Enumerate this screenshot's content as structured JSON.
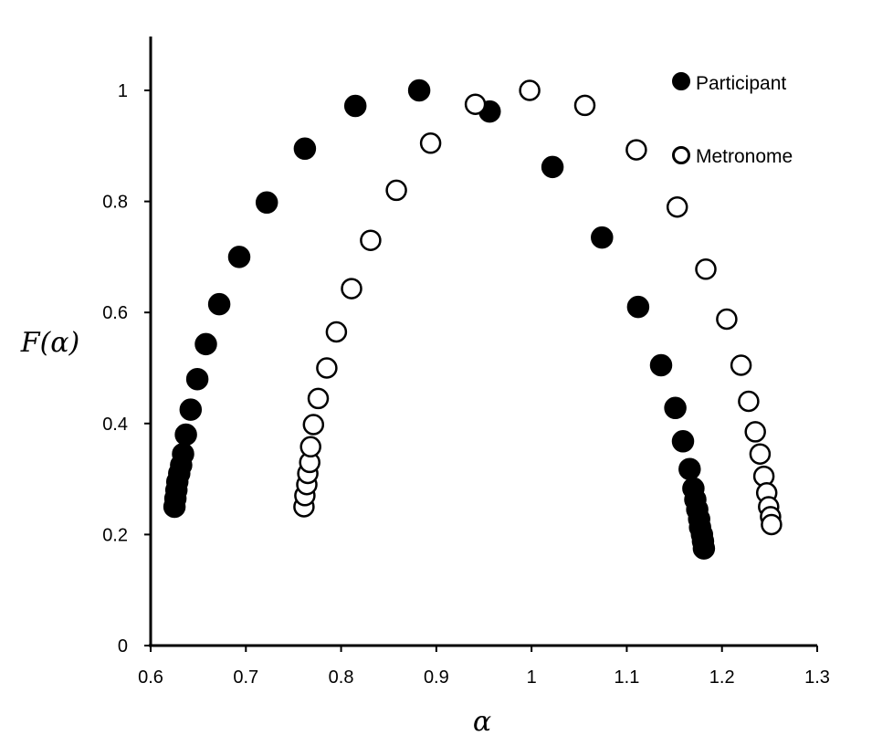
{
  "chart_data": {
    "type": "scatter",
    "title": "",
    "xlabel": "α",
    "ylabel": "F(α)",
    "xlim": [
      0.6,
      1.3
    ],
    "ylim": [
      0,
      1.1
    ],
    "x_ticks": [
      "0.6",
      "0.7",
      "0.8",
      "0.9",
      "1",
      "1.1",
      "1.2",
      "1.3"
    ],
    "y_ticks": [
      "0",
      "0.2",
      "0.4",
      "0.6",
      "0.8",
      "1"
    ],
    "grid": false,
    "legend_position": "top-right",
    "series": [
      {
        "name": "Participant",
        "marker": "filled-circle",
        "color": "#000000",
        "points": [
          [
            0.625,
            0.25
          ],
          [
            0.626,
            0.265
          ],
          [
            0.627,
            0.28
          ],
          [
            0.628,
            0.295
          ],
          [
            0.63,
            0.31
          ],
          [
            0.632,
            0.325
          ],
          [
            0.634,
            0.345
          ],
          [
            0.637,
            0.38
          ],
          [
            0.642,
            0.425
          ],
          [
            0.649,
            0.48
          ],
          [
            0.658,
            0.543
          ],
          [
            0.672,
            0.615
          ],
          [
            0.693,
            0.7
          ],
          [
            0.722,
            0.798
          ],
          [
            0.762,
            0.895
          ],
          [
            0.815,
            0.972
          ],
          [
            0.882,
            1.0
          ],
          [
            0.956,
            0.962
          ],
          [
            1.022,
            0.862
          ],
          [
            1.074,
            0.735
          ],
          [
            1.112,
            0.61
          ],
          [
            1.136,
            0.505
          ],
          [
            1.151,
            0.428
          ],
          [
            1.159,
            0.368
          ],
          [
            1.166,
            0.318
          ],
          [
            1.17,
            0.283
          ],
          [
            1.172,
            0.263
          ],
          [
            1.174,
            0.245
          ],
          [
            1.176,
            0.228
          ],
          [
            1.177,
            0.213
          ],
          [
            1.179,
            0.2
          ],
          [
            1.18,
            0.188
          ],
          [
            1.181,
            0.175
          ]
        ]
      },
      {
        "name": "Metronome",
        "marker": "open-circle",
        "color": "#000000",
        "points": [
          [
            0.761,
            0.25
          ],
          [
            0.762,
            0.27
          ],
          [
            0.764,
            0.29
          ],
          [
            0.765,
            0.31
          ],
          [
            0.767,
            0.33
          ],
          [
            0.768,
            0.358
          ],
          [
            0.771,
            0.398
          ],
          [
            0.776,
            0.445
          ],
          [
            0.785,
            0.5
          ],
          [
            0.795,
            0.565
          ],
          [
            0.811,
            0.643
          ],
          [
            0.831,
            0.73
          ],
          [
            0.858,
            0.82
          ],
          [
            0.894,
            0.905
          ],
          [
            0.941,
            0.975
          ],
          [
            0.998,
            1.0
          ],
          [
            1.056,
            0.973
          ],
          [
            1.11,
            0.893
          ],
          [
            1.153,
            0.79
          ],
          [
            1.183,
            0.678
          ],
          [
            1.205,
            0.588
          ],
          [
            1.22,
            0.505
          ],
          [
            1.228,
            0.44
          ],
          [
            1.235,
            0.385
          ],
          [
            1.24,
            0.345
          ],
          [
            1.244,
            0.305
          ],
          [
            1.247,
            0.275
          ],
          [
            1.249,
            0.25
          ],
          [
            1.251,
            0.232
          ],
          [
            1.252,
            0.218
          ]
        ]
      }
    ]
  }
}
